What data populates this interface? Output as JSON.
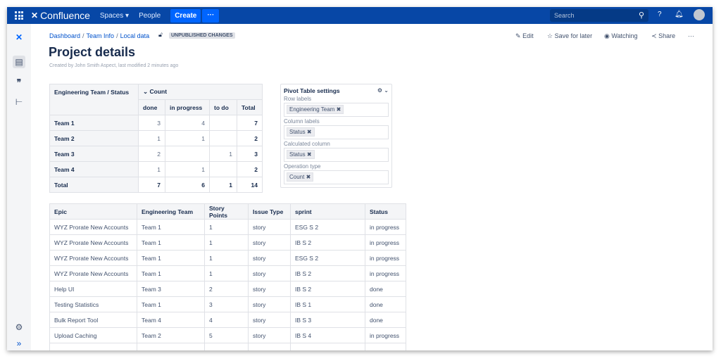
{
  "header": {
    "app_name": "Confluence",
    "nav": [
      "Spaces",
      "People"
    ],
    "create_label": "Create",
    "more_label": "···",
    "search_placeholder": "Search"
  },
  "breadcrumb": [
    "Dashboard",
    "Team Info",
    "Local data"
  ],
  "status_badge": "UNPUBLISHED CHANGES",
  "page": {
    "title": "Project details",
    "meta": "Created by John Smith Aspect, last modified 2 minutes ago"
  },
  "actions": {
    "edit": "Edit",
    "save": "Save for later",
    "watch": "Watching",
    "share": "Share",
    "more": "···"
  },
  "pivot": {
    "corner": "Engineering Team / Status",
    "measure": "Count",
    "columns": [
      "done",
      "in progress",
      "to do",
      "Total"
    ],
    "rows": [
      {
        "label": "Team 1",
        "values": [
          "3",
          "4",
          "",
          "7"
        ]
      },
      {
        "label": "Team 2",
        "values": [
          "1",
          "1",
          "",
          "2"
        ]
      },
      {
        "label": "Team 3",
        "values": [
          "2",
          "",
          "1",
          "3"
        ]
      },
      {
        "label": "Team 4",
        "values": [
          "1",
          "1",
          "",
          "2"
        ]
      },
      {
        "label": "Total",
        "values": [
          "7",
          "6",
          "1",
          "14"
        ]
      }
    ]
  },
  "pivot_settings": {
    "title": "Pivot Table settings",
    "fields": [
      {
        "label": "Row labels",
        "tag": "Engineering Team"
      },
      {
        "label": "Column labels",
        "tag": "Status"
      },
      {
        "label": "Calculated column",
        "tag": "Status"
      },
      {
        "label": "Operation type",
        "tag": "Count"
      }
    ]
  },
  "data_table": {
    "headers": [
      "Epic",
      "Engineering Team",
      "Story Points",
      "Issue Type",
      "sprint",
      "Status"
    ],
    "rows": [
      [
        "WYZ Prorate New Accounts",
        "Team 1",
        "1",
        "story",
        "ESG S 2",
        "in progress"
      ],
      [
        "WYZ Prorate New Accounts",
        "Team 1",
        "1",
        "story",
        "IB S 2",
        "in progress"
      ],
      [
        "WYZ Prorate New Accounts",
        "Team 1",
        "1",
        "story",
        "ESG S 2",
        "in progress"
      ],
      [
        "WYZ Prorate New Accounts",
        "Team 1",
        "1",
        "story",
        "IB S 2",
        "in progress"
      ],
      [
        "Help UI",
        "Team 3",
        "2",
        "story",
        "IB S 2",
        "done"
      ],
      [
        "Testing Statistics",
        "Team 1",
        "3",
        "story",
        "IB S 1",
        "done"
      ],
      [
        "Bulk Report Tool",
        "Team 4",
        "4",
        "story",
        "IB S 3",
        "done"
      ],
      [
        "Upload Caching",
        "Team 2",
        "5",
        "story",
        "IB S 4",
        "in progress"
      ]
    ]
  }
}
